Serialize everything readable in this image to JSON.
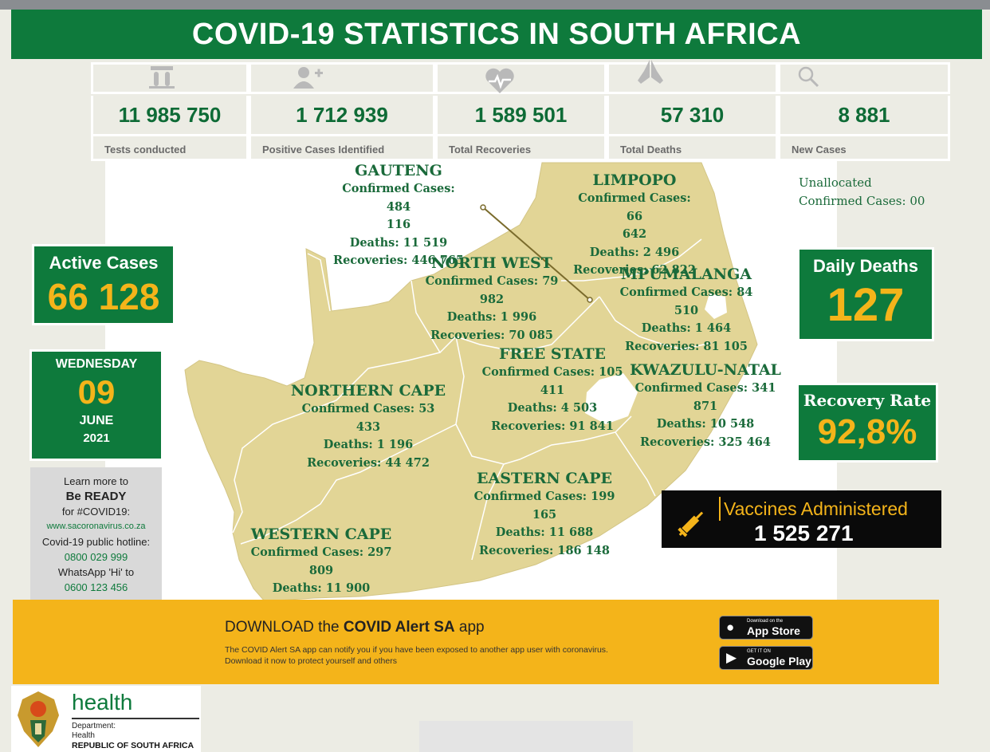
{
  "title": "COVID-19 STATISTICS IN SOUTH AFRICA",
  "stats": [
    {
      "value": "11 985 750",
      "label": "Tests conducted",
      "icon": "test-tubes-icon"
    },
    {
      "value": "1  712 939",
      "label": "Positive Cases Identified",
      "icon": "add-person-icon"
    },
    {
      "value": "1 589 501",
      "label": "Total Recoveries",
      "icon": "heartbeat-icon"
    },
    {
      "value": "57 310",
      "label": "Total Deaths",
      "icon": "praying-hands-icon"
    },
    {
      "value": "8 881",
      "label": "New Cases",
      "icon": "magnifier-icon"
    }
  ],
  "provinces": {
    "gauteng": {
      "name": "GAUTENG",
      "lines": [
        "Confirmed Cases:  484",
        "116",
        "Deaths: 11 519",
        "Recoveries: 446 765"
      ]
    },
    "limpopo": {
      "name": "LIMPOPO",
      "lines": [
        "Confirmed Cases: 66",
        "642",
        "Deaths: 2 496",
        "Recoveries: 62 822"
      ]
    },
    "north_west": {
      "name": "NORTH WEST",
      "lines": [
        "Confirmed Cases: 79 982",
        "Deaths: 1 996",
        "Recoveries: 70 085"
      ]
    },
    "mpumalanga": {
      "name": "MPUMALANGA",
      "lines": [
        "Confirmed Cases: 84 510",
        "Deaths:  1 464",
        "Recoveries: 81 105"
      ]
    },
    "free_state": {
      "name": "FREE STATE",
      "lines": [
        "Confirmed Cases: 105",
        "411",
        "Deaths: 4 503",
        "Recoveries:  91 841"
      ]
    },
    "kwazulu_natal": {
      "name": "KWAZULU-NATAL",
      "lines": [
        "Confirmed Cases: 341 871",
        "Deaths: 10 548",
        "Recoveries: 325 464"
      ]
    },
    "northern_cape": {
      "name": "NORTHERN CAPE",
      "lines": [
        "Confirmed Cases: 53 433",
        "Deaths: 1 196",
        "Recoveries: 44 472"
      ]
    },
    "eastern_cape": {
      "name": "EASTERN CAPE",
      "lines": [
        "Confirmed Cases: 199",
        "165",
        "Deaths: 11 688",
        "Recoveries: 186 148"
      ]
    },
    "western_cape": {
      "name": "WESTERN CAPE",
      "lines": [
        "Confirmed Cases: 297",
        "809",
        "Deaths: 11 900"
      ]
    }
  },
  "unallocated": {
    "line1": "Unallocated",
    "line2": "Confirmed Cases: 00"
  },
  "active_cases": {
    "label": "Active Cases",
    "value": "66 128"
  },
  "date": {
    "weekday": "WEDNESDAY",
    "day": "09",
    "month": "JUNE",
    "year": "2021"
  },
  "daily_deaths": {
    "label": "Daily Deaths",
    "value": "127"
  },
  "recovery_rate": {
    "label": "Recovery Rate",
    "value": "92,8%"
  },
  "vaccines": {
    "label": "Vaccines Administered",
    "value": "1 525 271",
    "icon": "syringe-icon"
  },
  "ready": {
    "line1": "Learn more to",
    "line2": "Be READY",
    "line3": "for #COVID19:",
    "url": "www.sacoronavirus.co.za",
    "line4": "Covid-19 public hotline:",
    "hotline": "0800 029 999",
    "line5": "WhatsApp 'Hi' to",
    "whatsapp": "0600 123 456"
  },
  "banner": {
    "title_pre": "DOWNLOAD the ",
    "title_bold": "COVID Alert SA",
    "title_post": " app",
    "desc": "The COVID Alert SA app can notify you if you have been exposed to another app user with coronavirus. Download it now to protect yourself and others",
    "app_store_small": "Download on the",
    "app_store": "App Store",
    "google_small": "GET IT ON",
    "google": "Google Play"
  },
  "logo": {
    "health": "health",
    "dept1": "Department:",
    "dept2": "Health",
    "country": "REPUBLIC OF SOUTH AFRICA"
  },
  "colors": {
    "brand_green": "#0e7a3c",
    "accent_gold": "#f4b41a",
    "map_fill": "#e2d596"
  }
}
